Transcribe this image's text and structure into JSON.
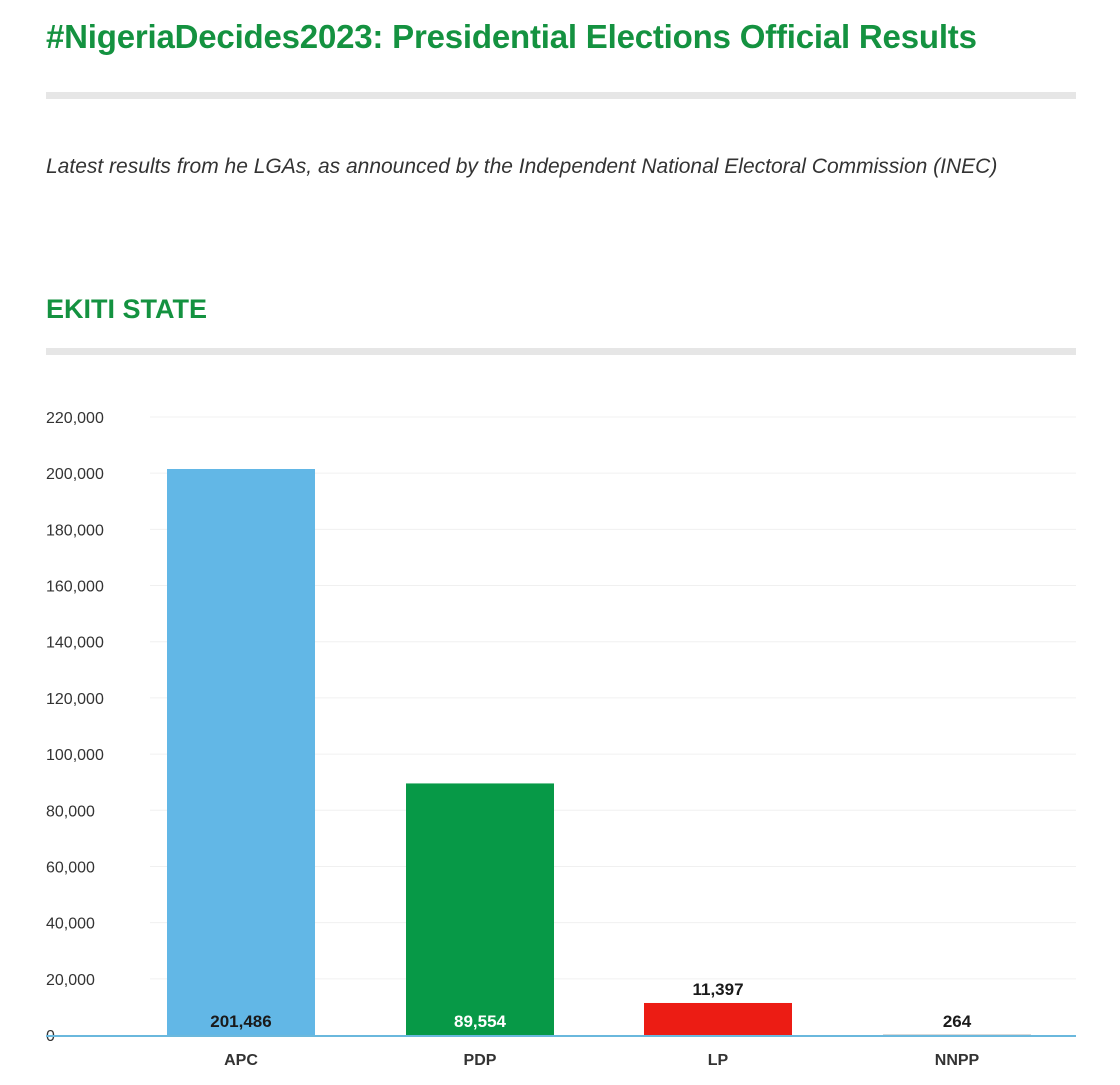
{
  "header": {
    "title": "#NigeriaDecides2023: Presidential Elections Official Results",
    "intro": "Latest results from he LGAs, as announced by the Independent National Electoral Commission (INEC)",
    "section_title": "EKITI STATE"
  },
  "chart_data": {
    "type": "bar",
    "title": "",
    "xlabel": "",
    "ylabel": "",
    "categories": [
      "APC",
      "PDP",
      "LP",
      "NNPP"
    ],
    "values": [
      201486,
      89554,
      11397,
      264
    ],
    "value_labels": [
      "201,486",
      "89,554",
      "11,397",
      "264"
    ],
    "ylim": [
      0,
      220000
    ],
    "y_ticks": [
      0,
      20000,
      40000,
      60000,
      80000,
      100000,
      120000,
      140000,
      160000,
      180000,
      200000,
      220000
    ],
    "y_tick_labels": [
      "0",
      "20,000",
      "40,000",
      "60,000",
      "80,000",
      "100,000",
      "120,000",
      "140,000",
      "160,000",
      "180,000",
      "200,000",
      "220,000"
    ],
    "colors": [
      "#62b7e6",
      "#079947",
      "#ec1c14",
      "#cccccc"
    ],
    "label_colors": [
      "#1a1a1a",
      "#ffffff",
      "#1a1a1a",
      "#1a1a1a"
    ],
    "grid": true,
    "legend": "none"
  }
}
